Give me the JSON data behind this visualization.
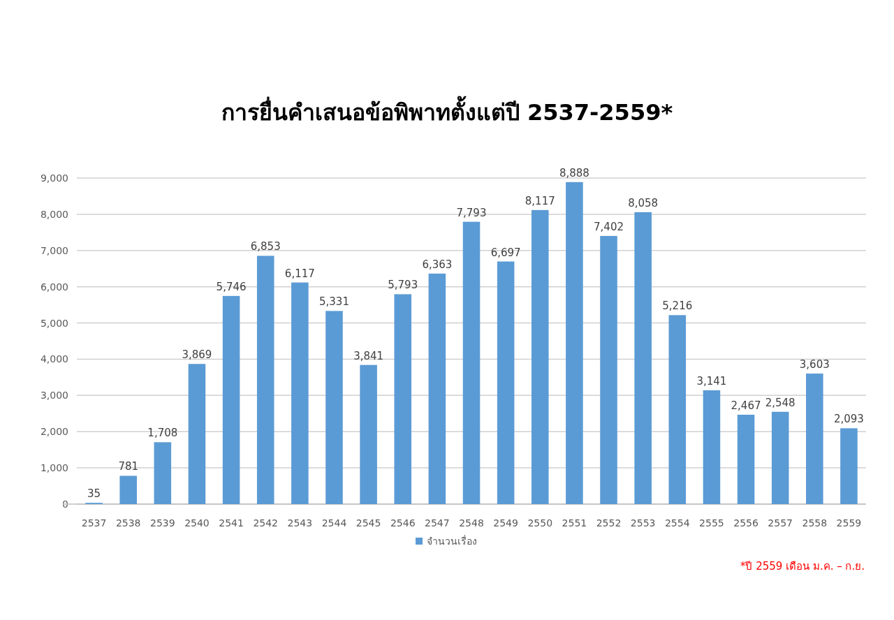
{
  "chart_data": {
    "type": "bar",
    "title": "การยื่นคำเสนอข้อพิพาทตั้งแต่ปี 2537-2559*",
    "categories": [
      "2537",
      "2538",
      "2539",
      "2540",
      "2541",
      "2542",
      "2543",
      "2544",
      "2545",
      "2546",
      "2547",
      "2548",
      "2549",
      "2550",
      "2551",
      "2552",
      "2553",
      "2554",
      "2555",
      "2556",
      "2557",
      "2558",
      "2559"
    ],
    "series": [
      {
        "name": "จำนวนเรื่อง",
        "color": "#5b9bd5",
        "values": [
          35,
          781,
          1708,
          3869,
          5746,
          6853,
          6117,
          5331,
          3841,
          5793,
          6363,
          7793,
          6697,
          8117,
          8888,
          7402,
          8058,
          5216,
          3141,
          2467,
          2548,
          3603,
          2093
        ],
        "value_labels": [
          "35",
          "781",
          "1,708",
          "3,869",
          "5,746",
          "6,853",
          "6,117",
          "5,331",
          "3,841",
          "5,793",
          "6,363",
          "7,793",
          "6,697",
          "8,117",
          "8,888",
          "7,402",
          "8,058",
          "5,216",
          "3,141",
          "2,467",
          "2,548",
          "3,603",
          "2,093"
        ]
      }
    ],
    "ylim": [
      0,
      9000
    ],
    "yticks": [
      0,
      {
        "value": 1000,
        "label": "1,000"
      },
      {
        "value": 2000,
        "label": "2,000"
      },
      {
        "value": 3000,
        "label": "3,000"
      },
      {
        "value": 4000,
        "label": "4,000"
      },
      {
        "value": 5000,
        "label": "5,000"
      },
      {
        "value": 6000,
        "label": "6,000"
      },
      {
        "value": 7000,
        "label": "7,000"
      },
      {
        "value": 8000,
        "label": "8,000"
      },
      {
        "value": 9000,
        "label": "9,000"
      }
    ],
    "grid": "y",
    "legend": "bottom",
    "annotations": [
      "*ปี 2559 เดือน ม.ค. – ก.ย."
    ]
  }
}
